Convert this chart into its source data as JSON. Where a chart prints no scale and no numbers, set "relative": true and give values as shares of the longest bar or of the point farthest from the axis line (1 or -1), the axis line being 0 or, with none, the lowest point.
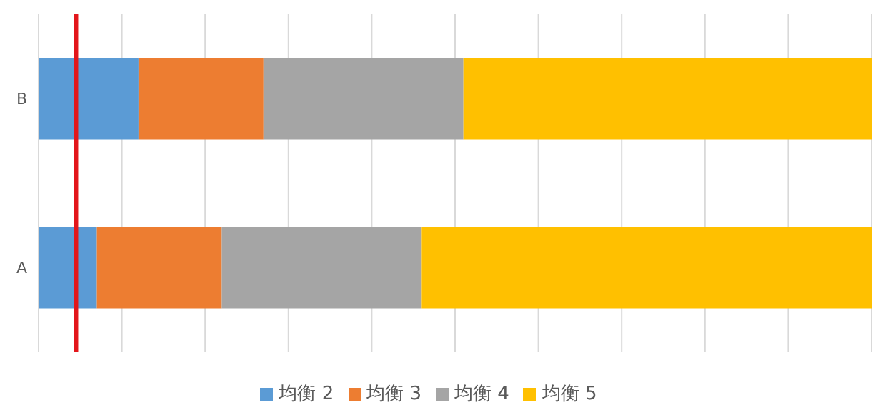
{
  "chart_data": {
    "type": "bar",
    "orientation": "horizontal",
    "stacked": true,
    "relative": true,
    "categories": [
      "B",
      "A"
    ],
    "series": [
      {
        "name": "均衡 2",
        "color": "#5b9bd5",
        "values": [
          0.12,
          0.07
        ]
      },
      {
        "name": "均衡 3",
        "color": "#ed7d31",
        "values": [
          0.15,
          0.15
        ]
      },
      {
        "name": "均衡 4",
        "color": "#a5a5a5",
        "values": [
          0.24,
          0.24
        ]
      },
      {
        "name": "均衡 5",
        "color": "#ffc000",
        "values": [
          0.49,
          0.54
        ]
      }
    ],
    "ref_lines": [
      {
        "axis": "x",
        "value": 0.045,
        "color": "#e3161b"
      }
    ],
    "grid": "x",
    "legend": "bottom"
  }
}
